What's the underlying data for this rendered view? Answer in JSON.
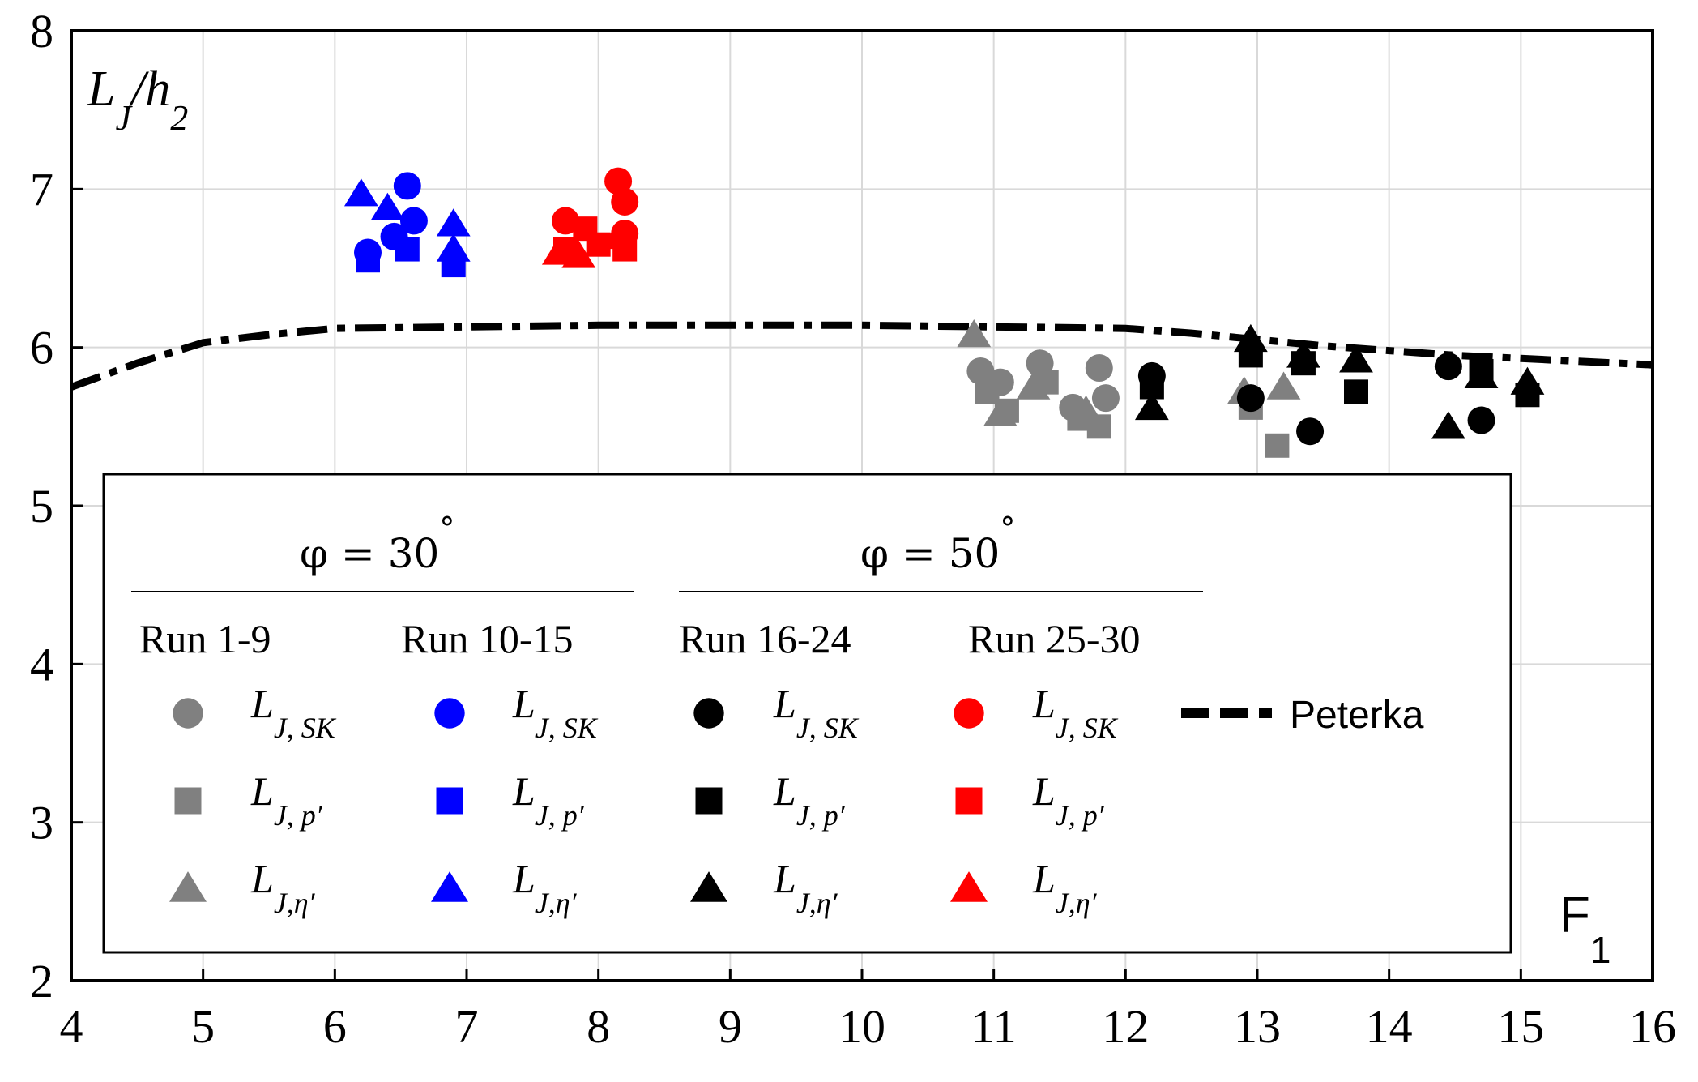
{
  "chart_data": {
    "type": "scatter",
    "title": "",
    "xlabel": "F",
    "xlabel_sub": "1",
    "ylabel": "L",
    "ylabel_sub1": "J",
    "ylabel_mid": "/h",
    "ylabel_sub2": "2",
    "xlim": [
      4,
      16
    ],
    "ylim": [
      2,
      8
    ],
    "xticks": [
      4,
      5,
      6,
      7,
      8,
      9,
      10,
      11,
      12,
      13,
      14,
      15,
      16
    ],
    "yticks": [
      2,
      3,
      4,
      5,
      6,
      7,
      8
    ],
    "grid": true,
    "legend_position": "lower-left",
    "legend": {
      "groups": [
        {
          "phi_label": "φ = 30",
          "degree": "°"
        },
        {
          "phi_label": "φ = 50",
          "degree": "°"
        }
      ],
      "runs": [
        "Run 1-9",
        "Run 10-15",
        "Run 16-24",
        "Run 25-30"
      ],
      "measures": [
        {
          "main": "L",
          "sub": "J, SK"
        },
        {
          "main": "L",
          "sub": "J, p′"
        },
        {
          "main": "L",
          "sub": "J,η′"
        }
      ],
      "peterka_label": "Peterka"
    },
    "colors": {
      "Run 1-9": "#808080",
      "Run 10-15": "#0000ff",
      "Run 16-24": "#000000",
      "Run 25-30": "#ff0000"
    },
    "series": [
      {
        "name": "Run 1-9 L_J,SK",
        "run": "Run 1-9",
        "marker": "circle",
        "x": [
          10.9,
          11.05,
          11.35,
          11.6,
          11.8,
          11.85
        ],
        "y": [
          5.85,
          5.78,
          5.9,
          5.62,
          5.87,
          5.68
        ]
      },
      {
        "name": "Run 1-9 L_J,p'",
        "run": "Run 1-9",
        "marker": "square",
        "x": [
          10.95,
          11.1,
          11.4,
          11.65,
          11.8,
          12.95,
          13.15
        ],
        "y": [
          5.72,
          5.6,
          5.78,
          5.55,
          5.5,
          5.62,
          5.38
        ]
      },
      {
        "name": "Run 1-9 L_J,eta'",
        "run": "Run 1-9",
        "marker": "triangle",
        "x": [
          10.85,
          11.05,
          11.3,
          11.7,
          12.9,
          13.2
        ],
        "y": [
          6.08,
          5.58,
          5.75,
          5.6,
          5.72,
          5.75
        ]
      },
      {
        "name": "Run 10-15 L_J,SK",
        "run": "Run 10-15",
        "marker": "circle",
        "x": [
          6.25,
          6.45,
          6.55,
          6.6
        ],
        "y": [
          6.6,
          6.7,
          7.02,
          6.8
        ]
      },
      {
        "name": "Run 10-15 L_J,p'",
        "run": "Run 10-15",
        "marker": "square",
        "x": [
          6.25,
          6.55,
          6.9
        ],
        "y": [
          6.55,
          6.62,
          6.52
        ]
      },
      {
        "name": "Run 10-15 L_J,eta'",
        "run": "Run 10-15",
        "marker": "triangle",
        "x": [
          6.2,
          6.4,
          6.9,
          6.9
        ],
        "y": [
          6.97,
          6.88,
          6.78,
          6.62
        ]
      },
      {
        "name": "Run 25-30 L_J,SK",
        "run": "Run 25-30",
        "marker": "circle",
        "x": [
          7.75,
          8.15,
          8.2,
          8.2
        ],
        "y": [
          6.8,
          7.05,
          6.92,
          6.72
        ]
      },
      {
        "name": "Run 25-30 L_J,p'",
        "run": "Run 25-30",
        "marker": "square",
        "x": [
          7.75,
          7.9,
          8.0,
          8.2
        ],
        "y": [
          6.62,
          6.75,
          6.65,
          6.62
        ]
      },
      {
        "name": "Run 25-30 L_J,eta'",
        "run": "Run 25-30",
        "marker": "triangle",
        "x": [
          7.7,
          7.85,
          8.15
        ],
        "y": [
          6.6,
          6.58,
          6.7
        ]
      },
      {
        "name": "Run 16-24 L_J,SK",
        "run": "Run 16-24",
        "marker": "circle",
        "x": [
          12.2,
          12.95,
          13.4,
          14.45,
          14.7
        ],
        "y": [
          5.82,
          5.68,
          5.47,
          5.88,
          5.54
        ]
      },
      {
        "name": "Run 16-24 L_J,p'",
        "run": "Run 16-24",
        "marker": "square",
        "x": [
          12.2,
          12.95,
          13.35,
          13.75,
          14.7,
          15.05
        ],
        "y": [
          5.75,
          5.95,
          5.9,
          5.72,
          5.85,
          5.7
        ]
      },
      {
        "name": "Run 16-24 L_J,eta'",
        "run": "Run 16-24",
        "marker": "triangle",
        "x": [
          12.2,
          12.95,
          13.35,
          13.75,
          14.45,
          14.7,
          15.05
        ],
        "y": [
          5.62,
          6.05,
          5.95,
          5.92,
          5.5,
          5.82,
          5.78
        ]
      }
    ],
    "peterka": {
      "name": "Peterka",
      "x": [
        4.0,
        4.5,
        5.0,
        5.5,
        6.0,
        7.0,
        8.0,
        9.0,
        10.0,
        11.0,
        12.0,
        12.5,
        13.0,
        13.5,
        14.0,
        14.5,
        15.0,
        15.5,
        16.0
      ],
      "y": [
        5.75,
        5.9,
        6.03,
        6.08,
        6.12,
        6.13,
        6.14,
        6.14,
        6.14,
        6.13,
        6.12,
        6.09,
        6.05,
        6.01,
        5.98,
        5.95,
        5.93,
        5.91,
        5.89
      ]
    }
  }
}
